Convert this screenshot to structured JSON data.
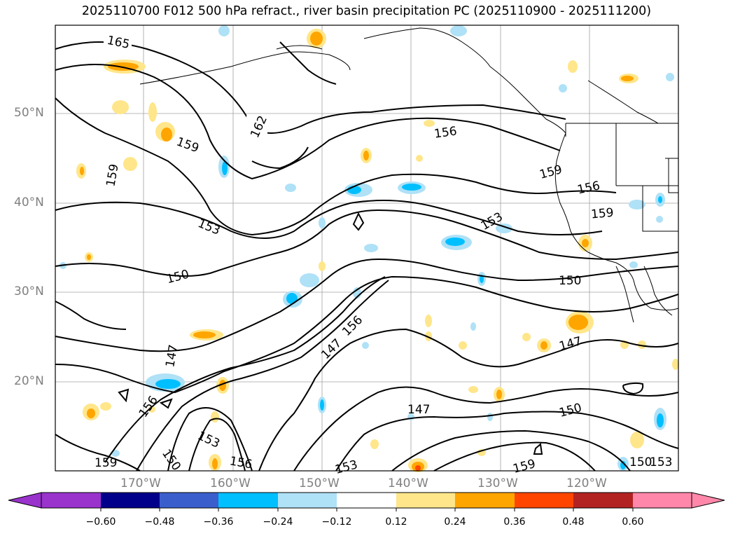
{
  "title": "2025110700 F012 500 hPa refract., river basin precipitation PC (2025110900 - 2025111200)",
  "lat_labels": [
    "50°N",
    "40°N",
    "30°N",
    "20°N"
  ],
  "lon_labels": [
    "170°W",
    "160°W",
    "150°W",
    "140°W",
    "130°W",
    "120°W"
  ],
  "contour_labels": [
    "165",
    "162",
    "159",
    "159",
    "153",
    "150",
    "147",
    "156",
    "156",
    "153",
    "159",
    "156",
    "159",
    "150",
    "147",
    "147",
    "156",
    "150",
    "153",
    "156",
    "147",
    "150",
    "159",
    "150",
    "153",
    "159",
    "153"
  ],
  "colorbar": {
    "ticks": [
      "−0.60",
      "−0.48",
      "−0.36",
      "−0.24",
      "−0.12",
      "0.12",
      "0.24",
      "0.36",
      "0.48",
      "0.60"
    ],
    "colors": [
      "#9933cc",
      "#00008b",
      "#3a5fcd",
      "#00bfff",
      "#afe1f7",
      "#ffffff",
      "#ffe68a",
      "#ffa500",
      "#ff4500",
      "#b22222",
      "#ff88aa"
    ]
  },
  "colors": {
    "grid": "#a0a0a0",
    "contour": "#000000",
    "axis_label": "#808080"
  }
}
